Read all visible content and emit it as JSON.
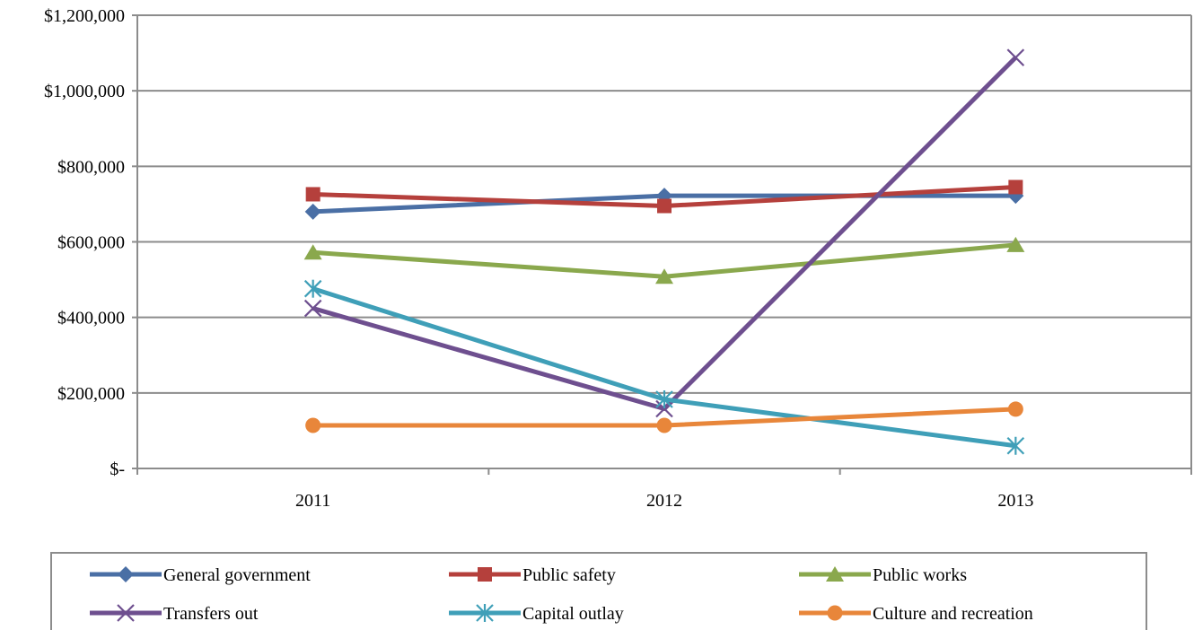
{
  "chart_data": {
    "type": "line",
    "categories": [
      "2011",
      "2012",
      "2013"
    ],
    "ylim": [
      0,
      1200000
    ],
    "yticks": [
      0,
      200000,
      400000,
      600000,
      800000,
      1000000,
      1200000
    ],
    "ytick_labels": [
      "$-",
      "$200,000",
      "$400,000",
      "$600,000",
      "$800,000",
      "$1,000,000",
      "$1,200,000"
    ],
    "grid": true,
    "legend_position": "bottom",
    "series": [
      {
        "name": "General government",
        "values": [
          680000,
          722000,
          722000
        ],
        "color": "#4a6fa5",
        "marker": "diamond"
      },
      {
        "name": "Public safety",
        "values": [
          726000,
          695000,
          745000
        ],
        "color": "#b5403c",
        "marker": "square"
      },
      {
        "name": "Public works",
        "values": [
          572000,
          508000,
          592000
        ],
        "color": "#8aa84d",
        "marker": "triangle"
      },
      {
        "name": "Transfers out",
        "values": [
          424000,
          158000,
          1088000
        ],
        "color": "#6e4f8f",
        "marker": "x"
      },
      {
        "name": "Capital outlay",
        "values": [
          476000,
          183000,
          60000
        ],
        "color": "#3f9fb8",
        "marker": "asterisk"
      },
      {
        "name": "Culture and recreation",
        "values": [
          114000,
          114000,
          157000
        ],
        "color": "#e8863a",
        "marker": "circle"
      }
    ]
  }
}
